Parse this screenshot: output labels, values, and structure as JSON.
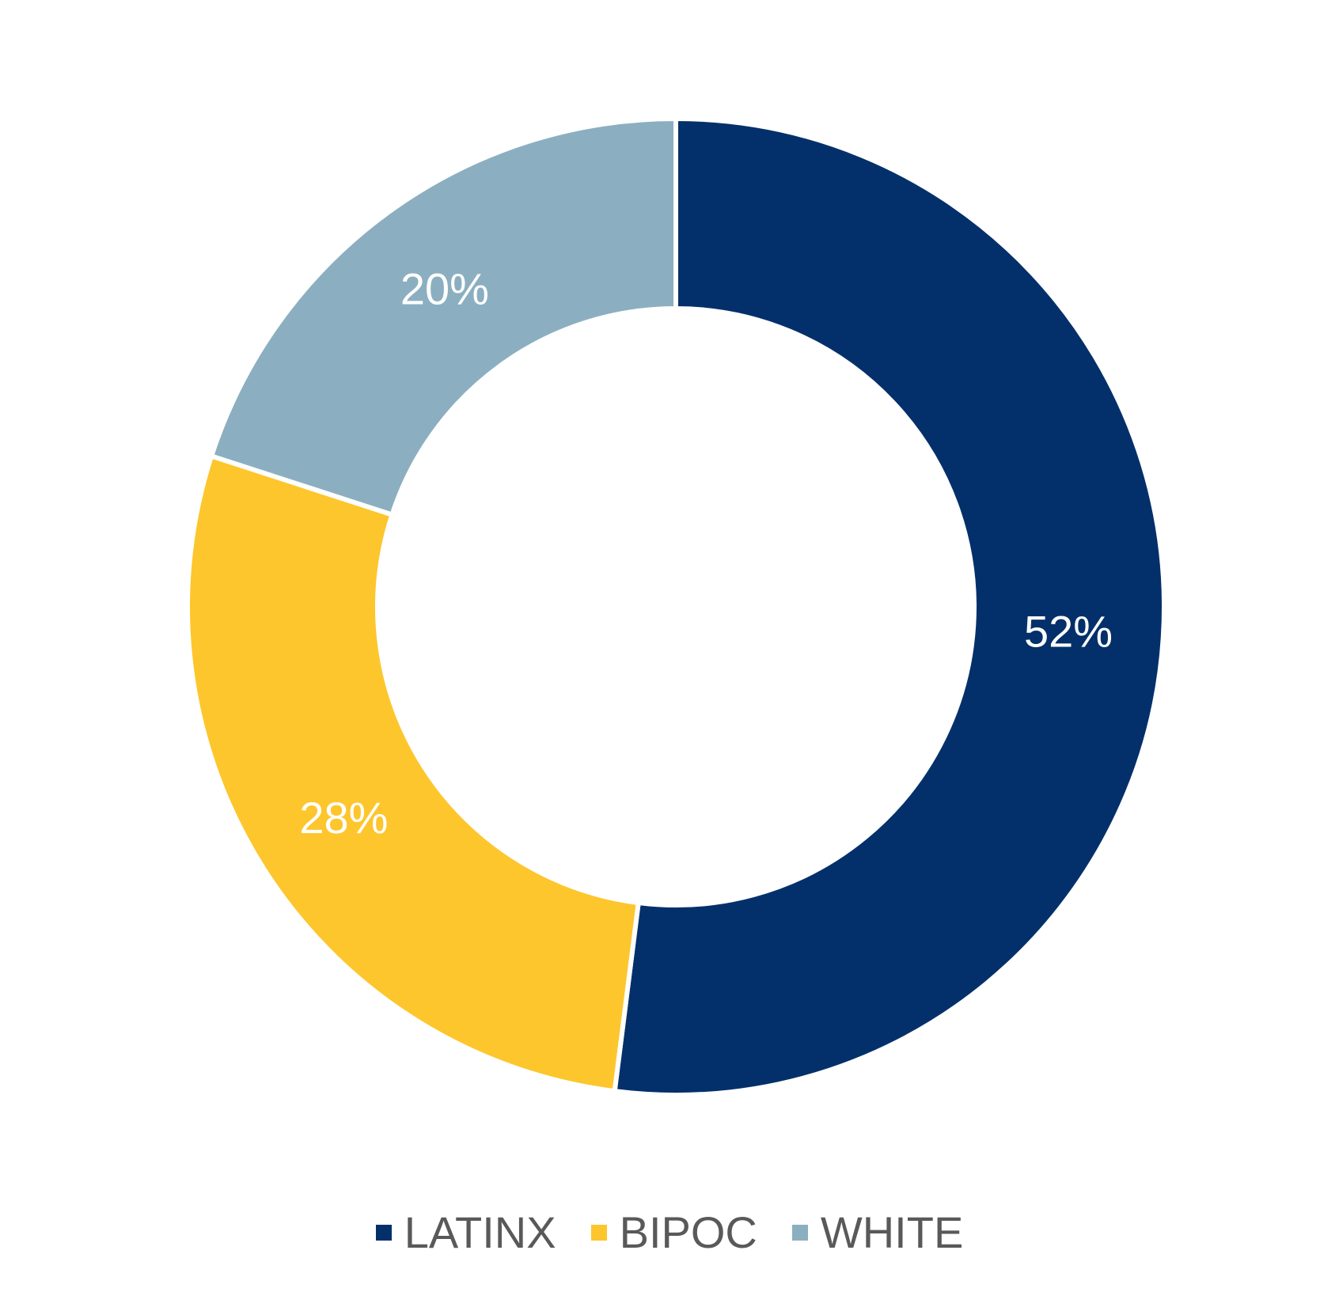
{
  "colors": {
    "background": "#ffffff",
    "legend_text": "#595959",
    "slice_label_text": "#ffffff"
  },
  "chart_data": {
    "type": "pie",
    "variant": "donut",
    "title": "",
    "slices": [
      {
        "label": "LATINX",
        "value": 52,
        "display": "52%",
        "color": "#03306a"
      },
      {
        "label": "BIPOC",
        "value": 28,
        "display": "28%",
        "color": "#fdc62d"
      },
      {
        "label": "WHITE",
        "value": 20,
        "display": "20%",
        "color": "#8bafc0"
      }
    ],
    "legend": {
      "position": "bottom",
      "items": [
        "LATINX",
        "BIPOC",
        "WHITE"
      ]
    }
  }
}
